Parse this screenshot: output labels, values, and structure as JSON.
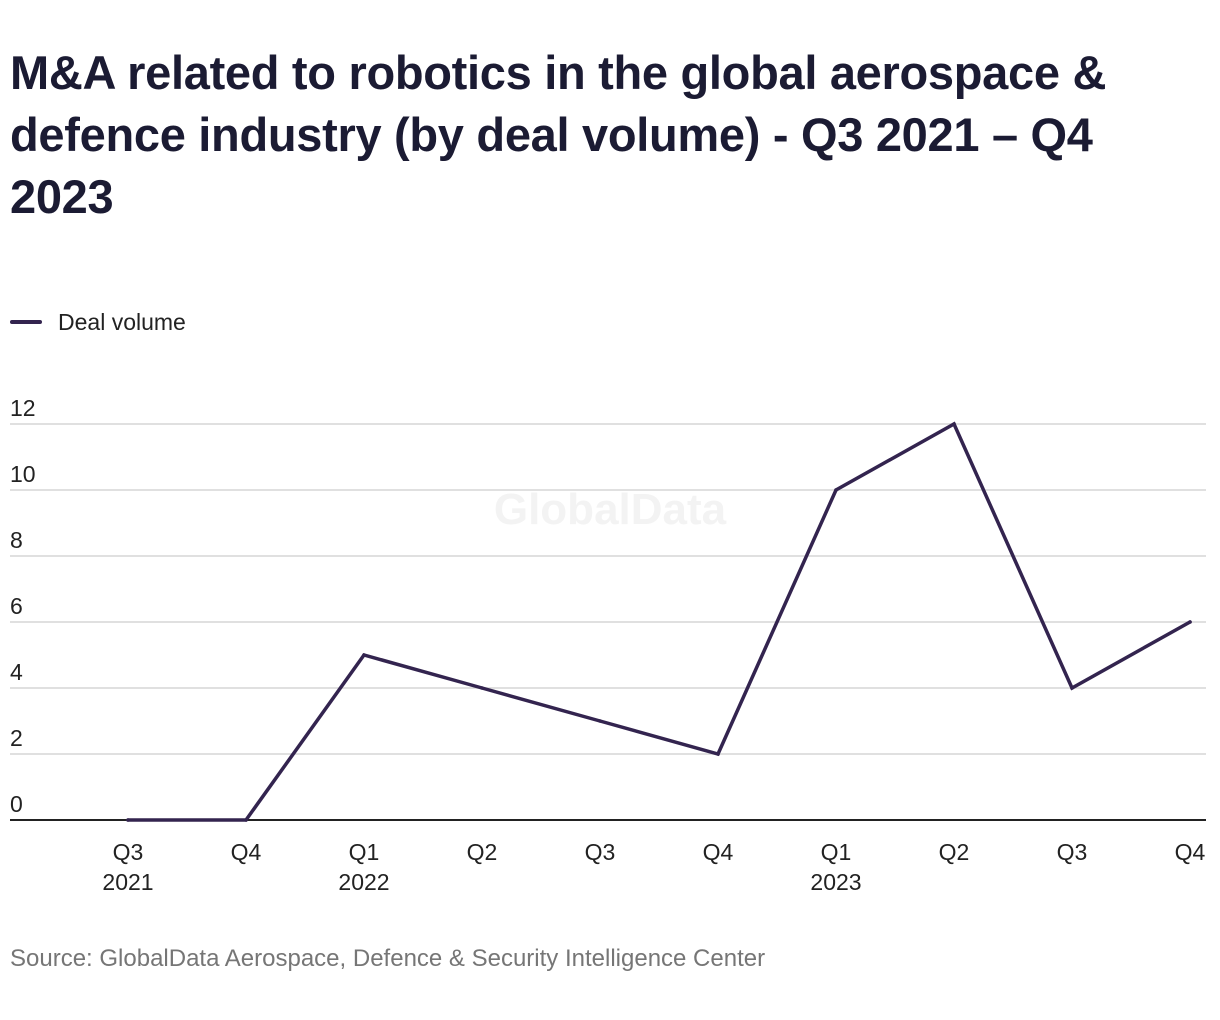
{
  "title": "M&A related to robotics in the global aerospace & defence industry (by deal volume) - Q3 2021 – Q4 2023",
  "watermark": "GlobalData",
  "source": "Source: GlobalData Aerospace, Defence & Security Intelligence Center",
  "colors": {
    "line": "#33244f",
    "grid": "#d6d6d6",
    "axis": "#222222",
    "text": "#222222",
    "watermark": "#f3f3f3"
  },
  "chart_data": {
    "type": "line",
    "title": "M&A related to robotics in the global aerospace & defence industry (by deal volume) - Q3 2021 – Q4 2023",
    "xlabel": "",
    "ylabel": "",
    "categories": [
      "Q3 2021",
      "Q4 2021",
      "Q1 2022",
      "Q2 2022",
      "Q3 2022",
      "Q4 2022",
      "Q1 2023",
      "Q2 2023",
      "Q3 2023",
      "Q4 2023"
    ],
    "x_tick_labels": [
      [
        "Q3",
        "2021"
      ],
      [
        "Q4",
        ""
      ],
      [
        "Q1",
        "2022"
      ],
      [
        "Q2",
        ""
      ],
      [
        "Q3",
        ""
      ],
      [
        "Q4",
        ""
      ],
      [
        "Q1",
        "2023"
      ],
      [
        "Q2",
        ""
      ],
      [
        "Q3",
        ""
      ],
      [
        "Q4",
        ""
      ]
    ],
    "y_ticks": [
      0,
      2,
      4,
      6,
      8,
      10,
      12
    ],
    "ylim": [
      0,
      12
    ],
    "grid": true,
    "legend_position": "top-left",
    "series": [
      {
        "name": "Deal volume",
        "color": "#33244f",
        "values": [
          0,
          0,
          5,
          4,
          3,
          2,
          10,
          12,
          4,
          6
        ]
      }
    ]
  }
}
